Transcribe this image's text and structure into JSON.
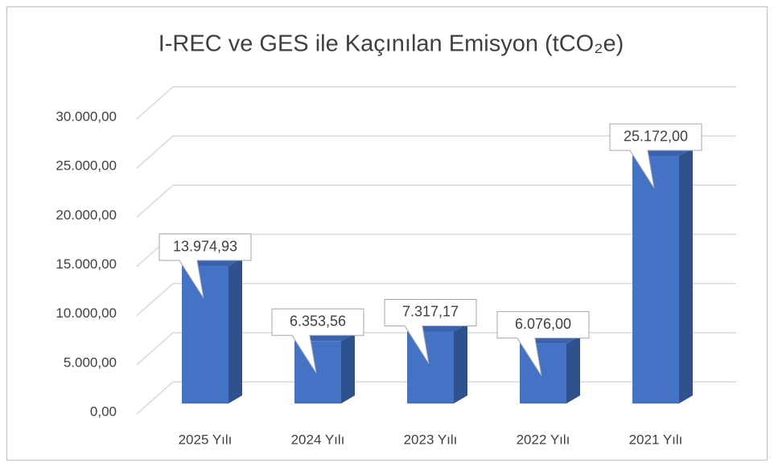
{
  "chart_data": {
    "type": "bar3d",
    "title": "I-REC ve GES ile Kaçınılan Emisyon (tCO₂e)",
    "categories": [
      "2025 Yılı",
      "2024 Yılı",
      "2023 Yılı",
      "2022 Yılı",
      "2021 Yılı"
    ],
    "values": [
      13974.93,
      6353.56,
      7317.17,
      6076,
      25172
    ],
    "value_labels": [
      "13.974,93",
      "6.353,56",
      "7.317,17",
      "6.076,00",
      "25.172,00"
    ],
    "color": "#4472c4",
    "ylim": [
      0,
      30000
    ],
    "yticks": [
      {
        "value": 0,
        "label": "0,00"
      },
      {
        "value": 5000,
        "label": "5.000,00"
      },
      {
        "value": 10000,
        "label": "10.000,00"
      },
      {
        "value": 15000,
        "label": "15.000,00"
      },
      {
        "value": 20000,
        "label": "20.000,00"
      },
      {
        "value": 25000,
        "label": "25.000,00"
      },
      {
        "value": 30000,
        "label": "30.000,00"
      }
    ],
    "grid": true
  }
}
